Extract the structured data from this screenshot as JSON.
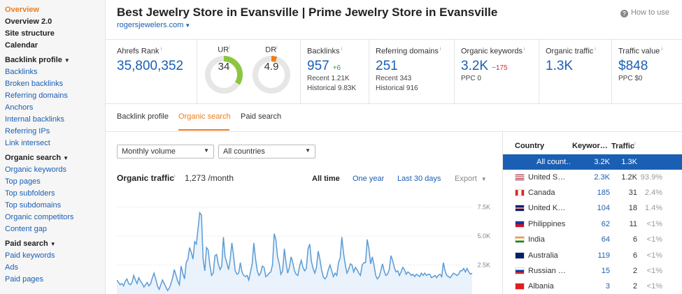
{
  "sidebar": {
    "items": [
      {
        "label": "Overview",
        "kind": "active"
      },
      {
        "label": "Overview 2.0",
        "kind": "head"
      },
      {
        "label": "Site structure",
        "kind": "head"
      },
      {
        "label": "Calendar",
        "kind": "head"
      },
      {
        "label": "Backlink profile",
        "kind": "section"
      },
      {
        "label": "Backlinks",
        "kind": "link"
      },
      {
        "label": "Broken backlinks",
        "kind": "link"
      },
      {
        "label": "Referring domains",
        "kind": "link"
      },
      {
        "label": "Anchors",
        "kind": "link"
      },
      {
        "label": "Internal backlinks",
        "kind": "link"
      },
      {
        "label": "Referring IPs",
        "kind": "link"
      },
      {
        "label": "Link intersect",
        "kind": "link"
      },
      {
        "label": "Organic search",
        "kind": "section"
      },
      {
        "label": "Organic keywords",
        "kind": "link"
      },
      {
        "label": "Top pages",
        "kind": "link"
      },
      {
        "label": "Top subfolders",
        "kind": "link"
      },
      {
        "label": "Top subdomains",
        "kind": "link"
      },
      {
        "label": "Organic competitors",
        "kind": "link"
      },
      {
        "label": "Content gap",
        "kind": "link"
      },
      {
        "label": "Paid search",
        "kind": "section"
      },
      {
        "label": "Paid keywords",
        "kind": "link"
      },
      {
        "label": "Ads",
        "kind": "link"
      },
      {
        "label": "Paid pages",
        "kind": "link"
      }
    ]
  },
  "header": {
    "title": "Best Jewelry Store in Evansville | Prime Jewelry Store in Evansville",
    "domain": "rogersjewelers.com",
    "how_to_use": "How to use"
  },
  "metrics": {
    "ahrefs_rank": {
      "label": "Ahrefs Rank",
      "value": "35,800,352"
    },
    "ur": {
      "label": "UR",
      "value": "34",
      "fraction": 0.34,
      "color": "#8cc63f"
    },
    "dr": {
      "label": "DR",
      "value": "4.9",
      "fraction": 0.049,
      "color": "#f07c1a"
    },
    "backlinks": {
      "label": "Backlinks",
      "value": "957",
      "delta": "+6",
      "recent": "Recent 1.21K",
      "historical": "Historical 9.83K"
    },
    "referring_domains": {
      "label": "Referring domains",
      "value": "251",
      "recent": "Recent 343",
      "historical": "Historical 916"
    },
    "organic_keywords": {
      "label": "Organic keywords",
      "value": "3.2K",
      "delta": "−175",
      "ppc": "PPC 0"
    },
    "organic_traffic": {
      "label": "Organic traffic",
      "value": "1.3K"
    },
    "traffic_value": {
      "label": "Traffic value",
      "value": "$848",
      "ppc": "PPC $0"
    }
  },
  "tabs": [
    {
      "label": "Backlink profile",
      "active": false
    },
    {
      "label": "Organic search",
      "active": true
    },
    {
      "label": "Paid search",
      "active": false
    }
  ],
  "filters": {
    "volume": "Monthly volume",
    "country": "All countries"
  },
  "chart_header": {
    "title": "Organic traffic",
    "subtitle": "1,273 /month",
    "ranges": [
      "All time",
      "One year",
      "Last 30 days"
    ],
    "export": "Export"
  },
  "chart_data": {
    "type": "area",
    "title": "Organic traffic",
    "ytick_labels": [
      "7.5K",
      "5.0K",
      "2.5K"
    ],
    "yticks": [
      7500,
      5000,
      2500
    ],
    "ylim": [
      0,
      8000
    ],
    "series": [
      {
        "color": "#5b9bd5",
        "values": [
          1200,
          1000,
          800,
          900,
          700,
          1100,
          1300,
          900,
          800,
          1000,
          1600,
          1200,
          900,
          1400,
          1100,
          900,
          600,
          800,
          1000,
          700,
          900,
          1400,
          1800,
          1300,
          700,
          400,
          800,
          1200,
          900,
          600,
          300,
          500,
          900,
          1400,
          2100,
          1600,
          1100,
          800,
          2400,
          1800,
          1300,
          2700,
          3000,
          4000,
          3600,
          3000,
          4500,
          4300,
          5600,
          7000,
          6800,
          3000,
          2000,
          4000,
          3800,
          2500,
          1600,
          1800,
          3300,
          3400,
          2600,
          2100,
          2400,
          4900,
          3200,
          2700,
          2100,
          3000,
          4400,
          3300,
          2000,
          1700,
          1800,
          2700,
          1900,
          1600,
          1500,
          1600,
          1200,
          1900,
          2600,
          4400,
          3000,
          2000,
          1600,
          1800,
          2400,
          2300,
          1500,
          1600,
          1800,
          1900,
          2500,
          5200,
          4700,
          3200,
          2600,
          1700,
          2000,
          3900,
          2700,
          1800,
          2300,
          3200,
          2700,
          2000,
          1700,
          1600,
          2400,
          2900,
          2300,
          2000,
          2200,
          3900,
          4300,
          2800,
          2200,
          1800,
          2300,
          3700,
          3000,
          2100,
          1500,
          1300,
          1500,
          2100,
          2500,
          2000,
          1500,
          1800,
          1600,
          2700,
          3100,
          4900,
          3500,
          2500,
          1800,
          2100,
          2600,
          2500,
          1900,
          2300,
          2100,
          1800,
          1600,
          2500,
          2700,
          2700,
          4700,
          3900,
          2600,
          3200,
          2500,
          1600,
          1300,
          1500,
          2000,
          2600,
          2000,
          1600,
          1700,
          2100,
          3300,
          2900,
          2300,
          1900,
          2000,
          1600,
          1900,
          2300,
          2100,
          1700,
          1900,
          1800,
          1600,
          1700,
          1500,
          1700,
          1600,
          1500,
          1800,
          1600,
          1800,
          1600,
          1700,
          1700,
          1400,
          1500,
          1600,
          1400,
          1600,
          1700,
          1500,
          2700,
          2000,
          1600,
          1500,
          1400,
          1600,
          1800,
          1700,
          1600,
          1700,
          2000,
          2000,
          2200,
          1900,
          2200,
          1900,
          1700,
          1800
        ]
      }
    ]
  },
  "country_table": {
    "headers": {
      "country": "Country",
      "keywords": "Keywor…",
      "traffic": "Traffic"
    },
    "rows": [
      {
        "name": "All count…",
        "keywords": "3.2K",
        "traffic": "1.3K",
        "pct": "",
        "flag": "",
        "selected": true
      },
      {
        "name": "United S…",
        "keywords": "2.3K",
        "traffic": "1.2K",
        "pct": "93.9%",
        "flag": "us"
      },
      {
        "name": "Canada",
        "keywords": "185",
        "traffic": "31",
        "pct": "2.4%",
        "flag": "ca"
      },
      {
        "name": "United K…",
        "keywords": "104",
        "traffic": "18",
        "pct": "1.4%",
        "flag": "uk"
      },
      {
        "name": "Philippines",
        "keywords": "62",
        "traffic": "11",
        "pct": "<1%",
        "flag": "ph"
      },
      {
        "name": "India",
        "keywords": "64",
        "traffic": "6",
        "pct": "<1%",
        "flag": "in"
      },
      {
        "name": "Australia",
        "keywords": "119",
        "traffic": "6",
        "pct": "<1%",
        "flag": "au"
      },
      {
        "name": "Russian …",
        "keywords": "15",
        "traffic": "2",
        "pct": "<1%",
        "flag": "ru"
      },
      {
        "name": "Albania",
        "keywords": "3",
        "traffic": "2",
        "pct": "<1%",
        "flag": "al"
      }
    ]
  }
}
